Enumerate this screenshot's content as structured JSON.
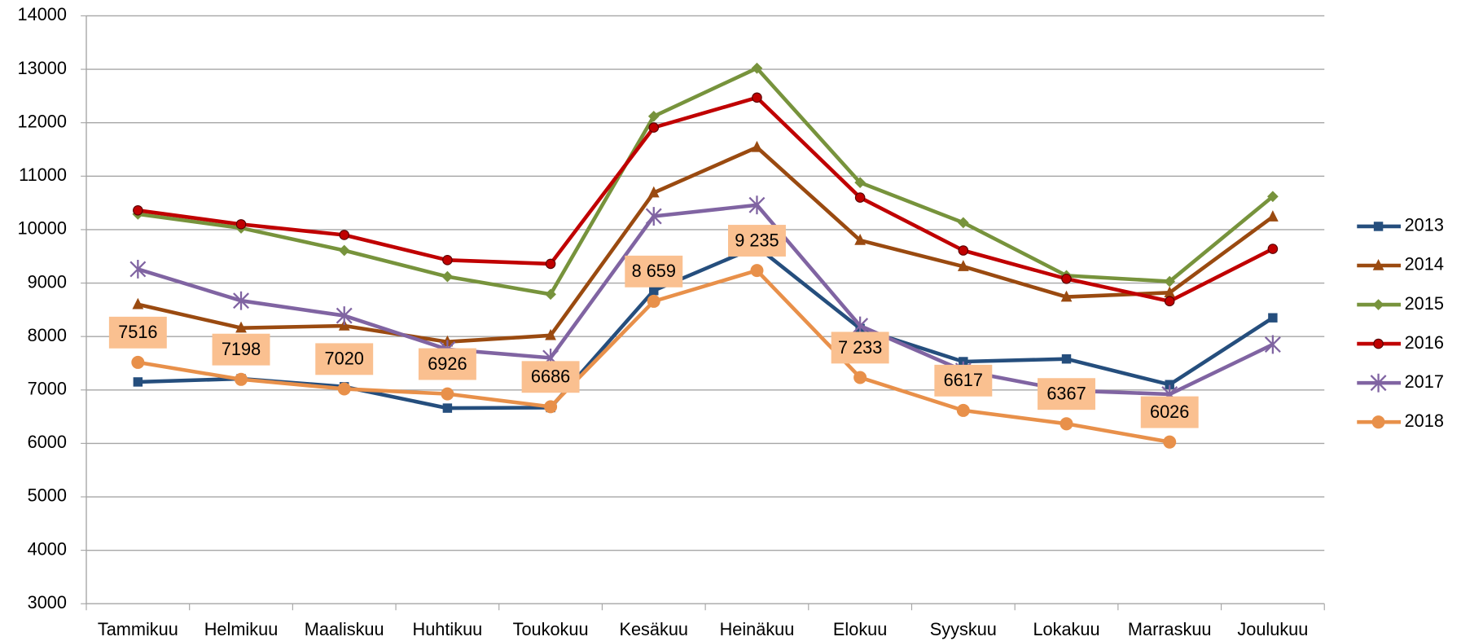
{
  "chart_data": {
    "type": "line",
    "categories": [
      "Tammikuu",
      "Helmikuu",
      "Maaliskuu",
      "Huhtikuu",
      "Toukokuu",
      "Kesäkuu",
      "Heinäkuu",
      "Elokuu",
      "Syyskuu",
      "Lokakuu",
      "Marraskuu",
      "Joulukuu"
    ],
    "ylim": [
      3000,
      14000
    ],
    "yticks": [
      3000,
      4000,
      5000,
      6000,
      7000,
      8000,
      9000,
      10000,
      11000,
      12000,
      13000,
      14000
    ],
    "grid": true,
    "legend": "right",
    "series": [
      {
        "name": "2013",
        "color": "#254e7d",
        "marker": "square",
        "values": [
          7150,
          7210,
          7060,
          6660,
          6670,
          8860,
          9680,
          8150,
          7530,
          7580,
          7100,
          8350
        ]
      },
      {
        "name": "2014",
        "color": "#9a4a10",
        "marker": "triangle",
        "values": [
          8600,
          8160,
          8200,
          7900,
          8020,
          10690,
          11540,
          9800,
          9310,
          8740,
          8820,
          10240
        ]
      },
      {
        "name": "2015",
        "color": "#77933c",
        "marker": "diamond",
        "values": [
          10290,
          10030,
          9610,
          9120,
          8790,
          12120,
          13020,
          10880,
          10130,
          9140,
          9030,
          10620
        ]
      },
      {
        "name": "2016",
        "color": "#c00000",
        "marker": "circle",
        "values": [
          10360,
          10100,
          9900,
          9430,
          9360,
          11910,
          12470,
          10600,
          9610,
          9080,
          8660,
          9640
        ]
      },
      {
        "name": "2017",
        "color": "#8064a2",
        "marker": "star",
        "values": [
          9260,
          8670,
          8390,
          7760,
          7600,
          10250,
          10460,
          8200,
          7360,
          6990,
          6920,
          7850
        ]
      },
      {
        "name": "2018",
        "color": "#e8904a",
        "marker": "bigcircle",
        "values": [
          7516,
          7198,
          7020,
          6926,
          6686,
          8659,
          9235,
          7233,
          6617,
          6367,
          6026,
          null
        ],
        "value_labels": [
          "7516",
          "7198",
          "7020",
          "6926",
          "6686",
          "8 659",
          "9 235",
          "7 233",
          "6617",
          "6367",
          "6026",
          null
        ]
      }
    ]
  }
}
